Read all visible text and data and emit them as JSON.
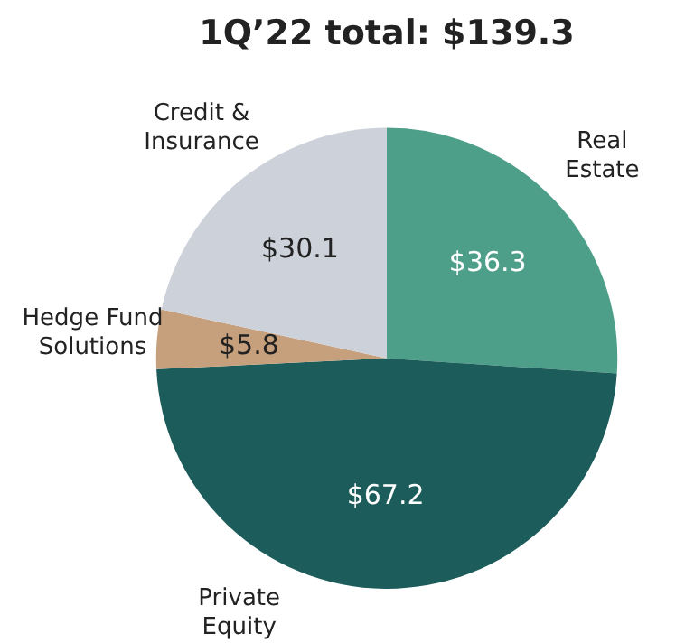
{
  "chart_data": {
    "type": "pie",
    "title": "1Q’22 total: $139.3",
    "categories": [
      "Real Estate",
      "Private Equity",
      "Hedge Fund Solutions",
      "Credit & Insurance"
    ],
    "values": [
      36.3,
      67.2,
      5.8,
      30.1
    ],
    "colors": [
      "#4e9f89",
      "#1c5c5a",
      "#c6a07c",
      "#cdd1da"
    ],
    "value_labels": [
      "$36.3",
      "$67.2",
      "$5.8",
      "$30.1"
    ],
    "legend": false
  }
}
